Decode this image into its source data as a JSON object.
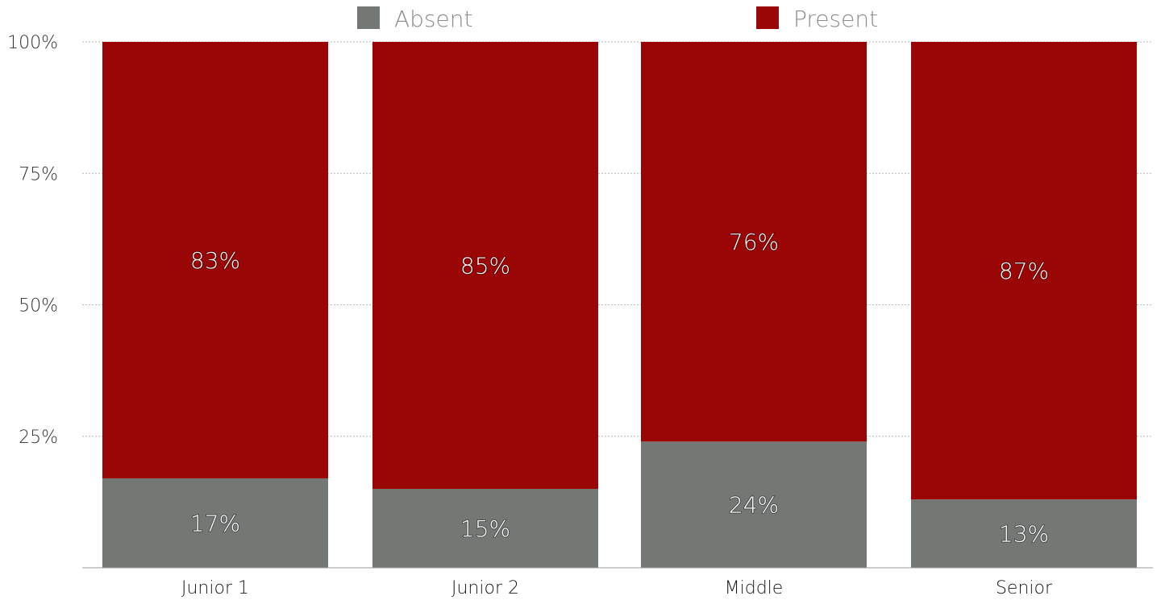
{
  "chart_data": {
    "type": "bar",
    "stacked": true,
    "categories": [
      "Junior 1",
      "Junior 2",
      "Middle",
      "Senior"
    ],
    "series": [
      {
        "name": "Absent",
        "values": [
          17,
          15,
          24,
          13
        ],
        "color": "#737875",
        "labels": [
          "17%",
          "15%",
          "24%",
          "13%"
        ]
      },
      {
        "name": "Present",
        "values": [
          83,
          85,
          76,
          87
        ],
        "color": "#9a0606",
        "labels": [
          "83%",
          "85%",
          "76%",
          "87%"
        ]
      }
    ],
    "ylim": [
      0,
      100
    ],
    "yticks": [
      25,
      50,
      75,
      100
    ],
    "ytick_labels": [
      "25%",
      "50%",
      "75%",
      "100%"
    ],
    "grid": true,
    "legend_position": "top"
  }
}
